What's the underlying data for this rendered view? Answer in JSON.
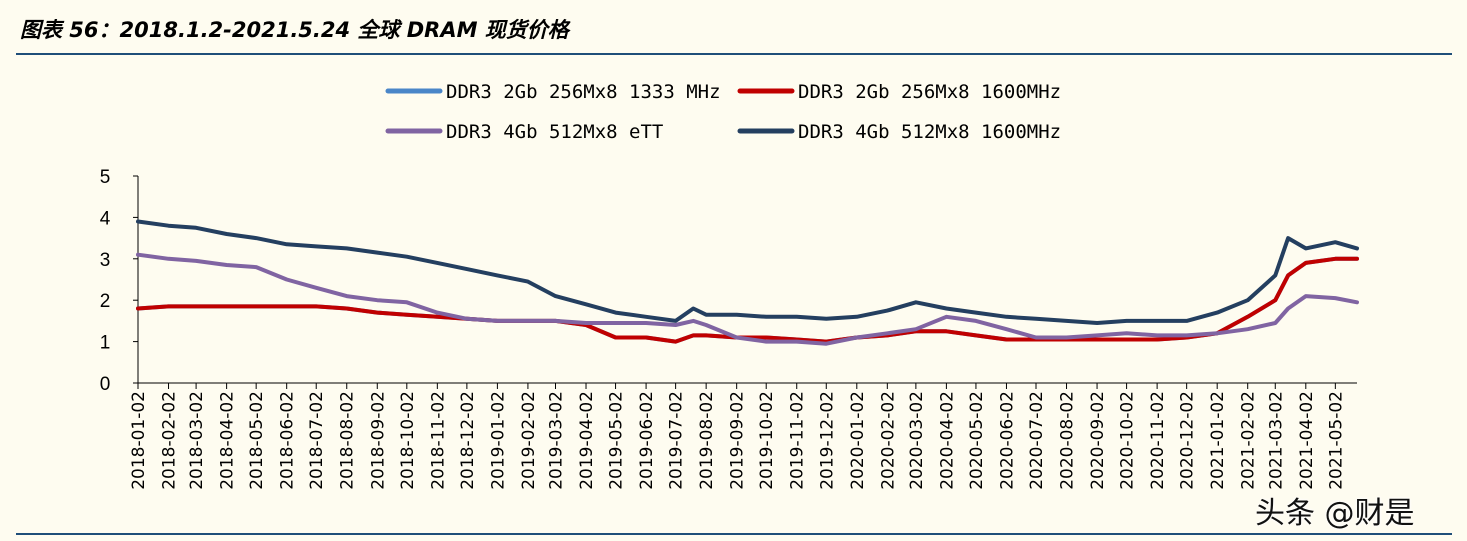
{
  "figure": {
    "title": "图表 56：2018.1.2-2021.5.24 全球 DRAM 现货价格",
    "watermark": "头条 @财是"
  },
  "chart_data": {
    "type": "line",
    "title": "",
    "xlabel": "",
    "ylabel": "",
    "ylim": [
      0,
      5
    ],
    "yticks": [
      0,
      1,
      2,
      3,
      4,
      5
    ],
    "grid": false,
    "legend_position": "top",
    "x_tick_labels": [
      "2018-01-02",
      "2018-02-02",
      "2018-03-02",
      "2018-04-02",
      "2018-05-02",
      "2018-06-02",
      "2018-07-02",
      "2018-08-02",
      "2018-09-02",
      "2018-10-02",
      "2018-11-02",
      "2018-12-02",
      "2019-01-02",
      "2019-02-02",
      "2019-03-02",
      "2019-04-02",
      "2019-05-02",
      "2019-06-02",
      "2019-07-02",
      "2019-08-02",
      "2019-09-02",
      "2019-10-02",
      "2019-11-02",
      "2019-12-02",
      "2020-01-02",
      "2020-02-02",
      "2020-03-02",
      "2020-04-02",
      "2020-05-02",
      "2020-06-02",
      "2020-07-02",
      "2020-08-02",
      "2020-09-02",
      "2020-10-02",
      "2020-11-02",
      "2020-12-02",
      "2021-01-02",
      "2021-02-02",
      "2021-03-02",
      "2021-04-02",
      "2021-05-02"
    ],
    "x": [
      "2018-01-02",
      "2018-02-02",
      "2018-03-02",
      "2018-04-02",
      "2018-05-02",
      "2018-06-02",
      "2018-07-02",
      "2018-08-02",
      "2018-09-02",
      "2018-10-02",
      "2018-11-02",
      "2018-12-02",
      "2019-01-02",
      "2019-02-02",
      "2019-03-02",
      "2019-04-02",
      "2019-05-02",
      "2019-06-02",
      "2019-07-02",
      "2019-07-20",
      "2019-08-02",
      "2019-09-02",
      "2019-10-02",
      "2019-11-02",
      "2019-12-02",
      "2020-01-02",
      "2020-02-02",
      "2020-03-02",
      "2020-04-02",
      "2020-05-02",
      "2020-06-02",
      "2020-07-02",
      "2020-08-02",
      "2020-09-02",
      "2020-10-02",
      "2020-11-02",
      "2020-12-02",
      "2021-01-02",
      "2021-02-02",
      "2021-03-02",
      "2021-03-15",
      "2021-04-02",
      "2021-05-02",
      "2021-05-24"
    ],
    "series": [
      {
        "name": "DDR3 2Gb 256Mx8 1333 MHz",
        "color": "#4a86c8",
        "values": [
          1.8,
          1.85,
          1.85,
          1.85,
          1.85,
          1.85,
          1.85,
          1.8,
          1.7,
          1.65,
          1.6,
          1.55,
          1.5,
          1.5,
          1.5,
          1.4,
          1.1,
          1.1,
          1.0,
          1.15,
          1.15,
          1.1,
          1.1,
          1.05,
          1.0,
          1.1,
          1.15,
          1.25,
          1.25,
          1.15,
          1.05,
          1.05,
          1.05,
          1.05,
          1.05,
          1.05,
          1.1,
          1.2,
          1.6,
          2.0,
          2.6,
          2.9,
          3.0,
          3.0
        ]
      },
      {
        "name": "DDR3 2Gb 256Mx8 1600MHz",
        "color": "#c00000",
        "values": [
          1.8,
          1.85,
          1.85,
          1.85,
          1.85,
          1.85,
          1.85,
          1.8,
          1.7,
          1.65,
          1.6,
          1.55,
          1.5,
          1.5,
          1.5,
          1.4,
          1.1,
          1.1,
          1.0,
          1.15,
          1.15,
          1.1,
          1.1,
          1.05,
          1.0,
          1.1,
          1.15,
          1.25,
          1.25,
          1.15,
          1.05,
          1.05,
          1.05,
          1.05,
          1.05,
          1.05,
          1.1,
          1.2,
          1.6,
          2.0,
          2.6,
          2.9,
          3.0,
          3.0
        ]
      },
      {
        "name": "DDR3 4Gb 512Mx8 eTT",
        "color": "#8064a2",
        "values": [
          3.1,
          3.0,
          2.95,
          2.85,
          2.8,
          2.5,
          2.3,
          2.1,
          2.0,
          1.95,
          1.7,
          1.55,
          1.5,
          1.5,
          1.5,
          1.45,
          1.45,
          1.45,
          1.4,
          1.5,
          1.4,
          1.1,
          1.0,
          1.0,
          0.95,
          1.1,
          1.2,
          1.3,
          1.6,
          1.5,
          1.3,
          1.1,
          1.1,
          1.15,
          1.2,
          1.15,
          1.15,
          1.2,
          1.3,
          1.45,
          1.8,
          2.1,
          2.05,
          1.95
        ]
      },
      {
        "name": "DDR3 4Gb 512Mx8 1600MHz",
        "color": "#243f60",
        "values": [
          3.9,
          3.8,
          3.75,
          3.6,
          3.5,
          3.35,
          3.3,
          3.25,
          3.15,
          3.05,
          2.9,
          2.75,
          2.6,
          2.45,
          2.1,
          1.9,
          1.7,
          1.6,
          1.5,
          1.8,
          1.65,
          1.65,
          1.6,
          1.6,
          1.55,
          1.6,
          1.75,
          1.95,
          1.8,
          1.7,
          1.6,
          1.55,
          1.5,
          1.45,
          1.5,
          1.5,
          1.5,
          1.7,
          2.0,
          2.6,
          3.5,
          3.25,
          3.4,
          3.25
        ]
      }
    ]
  }
}
